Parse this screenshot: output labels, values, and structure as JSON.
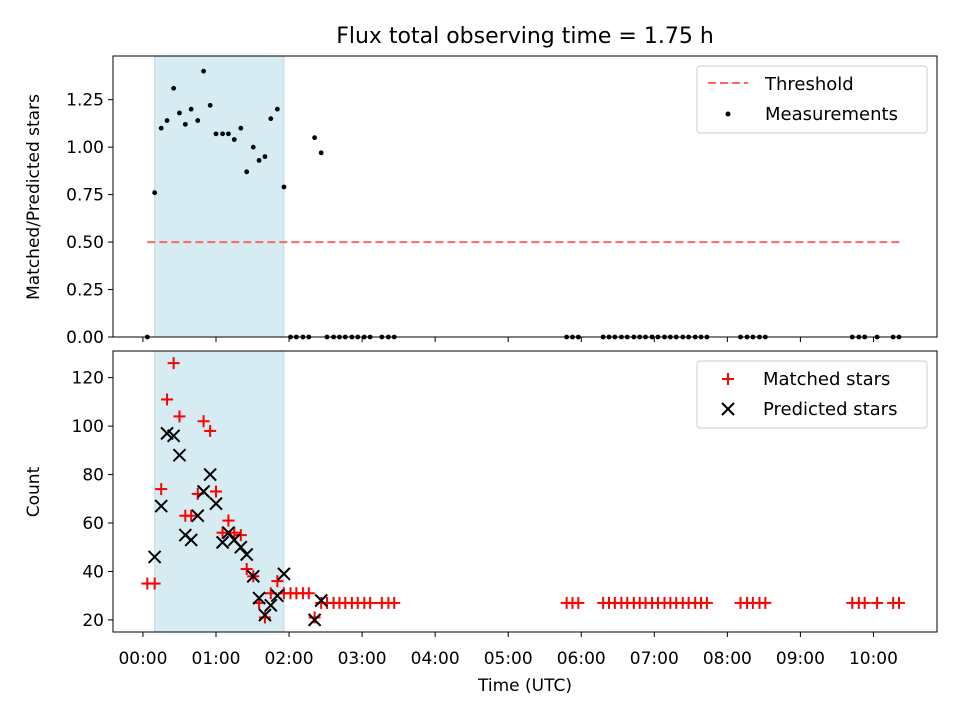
{
  "chart_data": [
    {
      "type": "scatter",
      "title": "Flux total observing time = 1.75 h",
      "xlabel": "",
      "ylabel": "Matched/Predicted stars",
      "x_unit": "hours (UTC)",
      "xlim": [
        -0.41,
        10.87
      ],
      "ylim": [
        0.0,
        1.48
      ],
      "yticks": [
        "0.00",
        "0.25",
        "0.50",
        "0.75",
        "1.00",
        "1.25"
      ],
      "grid": false,
      "legend_position": "top-right",
      "highlight_span": {
        "x": [
          0.16,
          1.93
        ],
        "color": "#add8e6"
      },
      "threshold": {
        "name": "Threshold",
        "x": [
          0.06,
          10.37
        ],
        "y": 0.5,
        "color": "#ff6666"
      },
      "series": [
        {
          "name": "Measurements",
          "color": "#000000",
          "marker": "dot",
          "x": [
            0.06,
            0.16,
            0.25,
            0.33,
            0.42,
            0.5,
            0.58,
            0.66,
            0.75,
            0.83,
            0.92,
            1.0,
            1.09,
            1.17,
            1.25,
            1.34,
            1.42,
            1.51,
            1.59,
            1.67,
            1.75,
            1.84,
            1.93,
            2.02,
            2.1,
            2.19,
            2.27,
            2.35,
            2.44,
            2.52,
            2.61,
            2.69,
            2.77,
            2.86,
            2.94,
            3.03,
            3.11,
            3.27,
            3.36,
            3.44,
            5.8,
            5.88,
            5.96,
            6.3,
            6.38,
            6.46,
            6.55,
            6.63,
            6.72,
            6.8,
            6.88,
            6.97,
            7.05,
            7.14,
            7.22,
            7.3,
            7.39,
            7.47,
            7.56,
            7.64,
            7.72,
            8.18,
            8.27,
            8.35,
            8.44,
            8.52,
            9.71,
            9.8,
            9.88,
            10.05,
            10.27,
            10.35
          ],
          "y": [
            0.0,
            0.76,
            1.1,
            1.14,
            1.31,
            1.18,
            1.12,
            1.2,
            1.14,
            1.4,
            1.22,
            1.07,
            1.07,
            1.07,
            1.04,
            1.1,
            0.87,
            1.0,
            0.93,
            0.95,
            1.15,
            1.2,
            0.79,
            0.0,
            0.0,
            0.0,
            0.0,
            1.05,
            0.97,
            0.0,
            0.0,
            0.0,
            0.0,
            0.0,
            0.0,
            0.0,
            0.0,
            0.0,
            0.0,
            0.0,
            0.0,
            0.0,
            0.0,
            0.0,
            0.0,
            0.0,
            0.0,
            0.0,
            0.0,
            0.0,
            0.0,
            0.0,
            0.0,
            0.0,
            0.0,
            0.0,
            0.0,
            0.0,
            0.0,
            0.0,
            0.0,
            0.0,
            0.0,
            0.0,
            0.0,
            0.0,
            0.0,
            0.0,
            0.0,
            0.0,
            0.0,
            0.0
          ]
        }
      ]
    },
    {
      "type": "scatter",
      "title": "",
      "xlabel": "Time (UTC)",
      "ylabel": "Count",
      "x_unit": "hours (UTC)",
      "xlim": [
        -0.41,
        10.87
      ],
      "ylim": [
        15,
        131
      ],
      "xticks": [
        "00:00",
        "01:00",
        "02:00",
        "03:00",
        "04:00",
        "05:00",
        "06:00",
        "07:00",
        "08:00",
        "09:00",
        "10:00"
      ],
      "yticks": [
        "20",
        "40",
        "60",
        "80",
        "100",
        "120"
      ],
      "grid": false,
      "legend_position": "top-right",
      "highlight_span": {
        "x": [
          0.16,
          1.93
        ],
        "color": "#add8e6"
      },
      "series": [
        {
          "name": "Matched stars",
          "color": "#ff0000",
          "marker": "plus",
          "x": [
            0.06,
            0.16,
            0.25,
            0.33,
            0.42,
            0.5,
            0.58,
            0.66,
            0.75,
            0.83,
            0.92,
            1.0,
            1.09,
            1.17,
            1.25,
            1.34,
            1.42,
            1.51,
            1.59,
            1.67,
            1.75,
            1.84,
            1.93,
            2.02,
            2.1,
            2.19,
            2.27,
            2.35,
            2.44,
            2.52,
            2.61,
            2.69,
            2.77,
            2.86,
            2.94,
            3.03,
            3.11,
            3.27,
            3.36,
            3.44,
            5.8,
            5.88,
            5.96,
            6.3,
            6.38,
            6.46,
            6.55,
            6.63,
            6.72,
            6.8,
            6.88,
            6.97,
            7.05,
            7.14,
            7.22,
            7.3,
            7.39,
            7.47,
            7.56,
            7.64,
            7.72,
            8.18,
            8.27,
            8.35,
            8.44,
            8.52,
            9.71,
            9.8,
            9.88,
            10.05,
            10.27,
            10.35
          ],
          "y": [
            35,
            35,
            74,
            111,
            126,
            104,
            63,
            63,
            72,
            102,
            98,
            73,
            56,
            61,
            56,
            55,
            41,
            38,
            27,
            21,
            31,
            36,
            31,
            31,
            31,
            31,
            31,
            21,
            27,
            27,
            27,
            27,
            27,
            27,
            27,
            27,
            27,
            27,
            27,
            27,
            27,
            27,
            27,
            27,
            27,
            27,
            27,
            27,
            27,
            27,
            27,
            27,
            27,
            27,
            27,
            27,
            27,
            27,
            27,
            27,
            27,
            27,
            27,
            27,
            27,
            27,
            27,
            27,
            27,
            27,
            27,
            27
          ]
        },
        {
          "name": "Predicted stars",
          "color": "#000000",
          "marker": "x",
          "x": [
            0.16,
            0.25,
            0.33,
            0.42,
            0.5,
            0.58,
            0.66,
            0.75,
            0.83,
            0.92,
            1.0,
            1.09,
            1.17,
            1.25,
            1.34,
            1.42,
            1.51,
            1.59,
            1.67,
            1.75,
            1.84,
            1.93,
            2.35,
            2.44
          ],
          "y": [
            46,
            67,
            97,
            96,
            88,
            55,
            53,
            63,
            73,
            80,
            68,
            52,
            56,
            53,
            50,
            47,
            38,
            29,
            22,
            26,
            30,
            39,
            20,
            28
          ]
        }
      ]
    }
  ]
}
